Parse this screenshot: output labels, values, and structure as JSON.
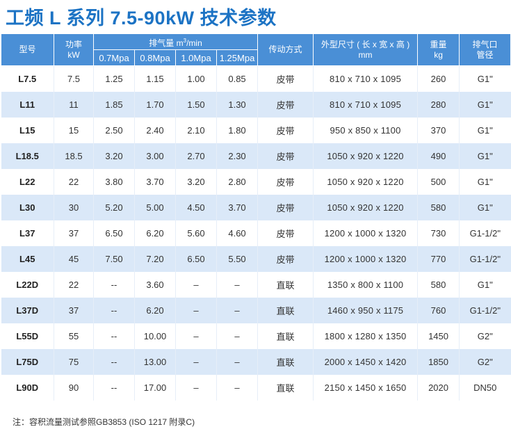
{
  "title": "工频 L 系列 7.5-90kW 技术参数",
  "headers": {
    "model": "型号",
    "power_line1": "功率",
    "power_line2": "kW",
    "flow_prefix": "排气量 m",
    "flow_sup": "3",
    "flow_suffix": "/min",
    "pressures": [
      "0.7Mpa",
      "0.8Mpa",
      "1.0Mpa",
      "1.25Mpa"
    ],
    "drive": "传动方式",
    "dimension_line1": "外型尺寸 ( 长 x 宽 x 高 )",
    "dimension_line2": "mm",
    "weight_line1": "重量",
    "weight_line2": "kg",
    "outlet_line1": "排气口",
    "outlet_line2": "管径"
  },
  "rows": [
    [
      "L7.5",
      "7.5",
      "1.25",
      "1.15",
      "1.00",
      "0.85",
      "皮带",
      "810 x 710 x 1095",
      "260",
      "G1\""
    ],
    [
      "L11",
      "11",
      "1.85",
      "1.70",
      "1.50",
      "1.30",
      "皮带",
      "810 x 710 x 1095",
      "280",
      "G1\""
    ],
    [
      "L15",
      "15",
      "2.50",
      "2.40",
      "2.10",
      "1.80",
      "皮带",
      "950 x 850 x 1100",
      "370",
      "G1\""
    ],
    [
      "L18.5",
      "18.5",
      "3.20",
      "3.00",
      "2.70",
      "2.30",
      "皮带",
      "1050 x 920 x 1220",
      "490",
      "G1\""
    ],
    [
      "L22",
      "22",
      "3.80",
      "3.70",
      "3.20",
      "2.80",
      "皮带",
      "1050 x 920 x 1220",
      "500",
      "G1\""
    ],
    [
      "L30",
      "30",
      "5.20",
      "5.00",
      "4.50",
      "3.70",
      "皮带",
      "1050 x 920 x 1220",
      "580",
      "G1\""
    ],
    [
      "L37",
      "37",
      "6.50",
      "6.20",
      "5.60",
      "4.60",
      "皮带",
      "1200 x 1000 x 1320",
      "730",
      "G1-1/2\""
    ],
    [
      "L45",
      "45",
      "7.50",
      "7.20",
      "6.50",
      "5.50",
      "皮带",
      "1200 x 1000 x 1320",
      "770",
      "G1-1/2\""
    ],
    [
      "L22D",
      "22",
      "--",
      "3.60",
      "–",
      "–",
      "直联",
      "1350 x 800 x 1100",
      "580",
      "G1\""
    ],
    [
      "L37D",
      "37",
      "--",
      "6.20",
      "–",
      "–",
      "直联",
      "1460 x 950 x 1175",
      "760",
      "G1-1/2\""
    ],
    [
      "L55D",
      "55",
      "--",
      "10.00",
      "–",
      "–",
      "直联",
      "1800 x 1280 x 1350",
      "1450",
      "G2\""
    ],
    [
      "L75D",
      "75",
      "--",
      "13.00",
      "–",
      "–",
      "直联",
      "2000 x 1450 x 1420",
      "1850",
      "G2\""
    ],
    [
      "L90D",
      "90",
      "--",
      "17.00",
      "–",
      "–",
      "直联",
      "2150 x 1450 x 1650",
      "2020",
      "DN50"
    ]
  ],
  "note": "注：容积流量测试参照GB3853 (ISO 1217 附录C)",
  "colors": {
    "title": "#1c73c4",
    "header_bg": "#4a8fd6",
    "stripe": "#dae8f8"
  }
}
